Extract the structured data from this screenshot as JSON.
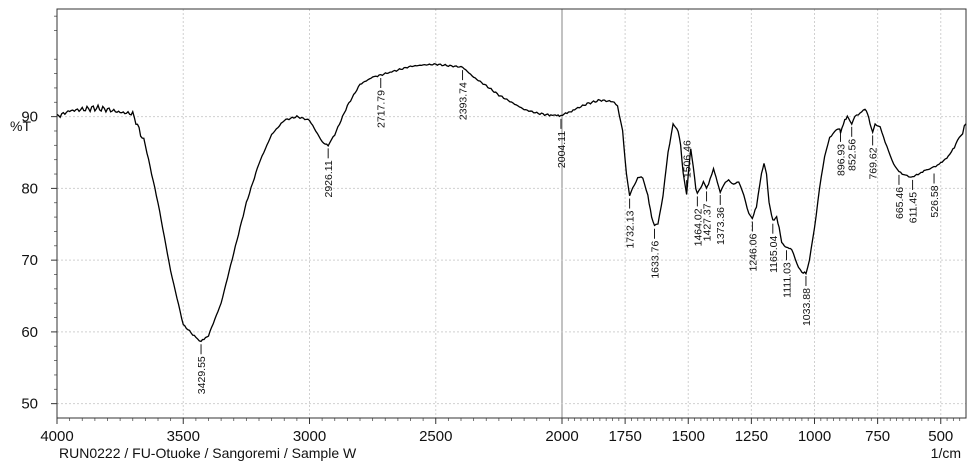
{
  "chart_data": {
    "type": "line",
    "ylabel": "%T",
    "xlabel": "1/cm",
    "caption": "RUN0222 / FU-Otuoke / Sangoremi /  Sample  W",
    "xlim": [
      4000,
      400
    ],
    "ylim": [
      48,
      105
    ],
    "grid": true,
    "x_ticks": [
      {
        "value": 4000,
        "label": "4000"
      },
      {
        "value": 3500,
        "label": "3500"
      },
      {
        "value": 3000,
        "label": "3000"
      },
      {
        "value": 2500,
        "label": "2500"
      },
      {
        "value": 2000,
        "label": "2000"
      },
      {
        "value": 1750,
        "label": "1750"
      },
      {
        "value": 1500,
        "label": "1500"
      },
      {
        "value": 1250,
        "label": "1250"
      },
      {
        "value": 1000,
        "label": "1000"
      },
      {
        "value": 750,
        "label": "750"
      },
      {
        "value": 500,
        "label": "500"
      }
    ],
    "y_ticks": [
      {
        "value": 50,
        "label": "50"
      },
      {
        "value": 60,
        "label": "60"
      },
      {
        "value": 70,
        "label": "70"
      },
      {
        "value": 80,
        "label": "80"
      },
      {
        "value": 90,
        "label": "90"
      }
    ],
    "series": [
      {
        "color": "#000000",
        "x": [
          4000,
          3950,
          3900,
          3850,
          3800,
          3750,
          3700,
          3650,
          3600,
          3550,
          3500,
          3450,
          3429.55,
          3400,
          3350,
          3300,
          3250,
          3200,
          3150,
          3100,
          3050,
          3000,
          2975,
          2950,
          2926.11,
          2900,
          2850,
          2800,
          2750,
          2717.79,
          2650,
          2600,
          2550,
          2500,
          2450,
          2393.74,
          2350,
          2300,
          2250,
          2200,
          2150,
          2100,
          2050,
          2004.11,
          1950,
          1900,
          1850,
          1800,
          1780,
          1760,
          1745,
          1732.13,
          1720,
          1700,
          1680,
          1660,
          1645,
          1633.76,
          1620,
          1600,
          1580,
          1560,
          1550,
          1540,
          1530,
          1520,
          1506.46,
          1500,
          1490,
          1480,
          1470,
          1464.02,
          1450,
          1440,
          1427.37,
          1420,
          1400,
          1390,
          1373.36,
          1360,
          1340,
          1320,
          1300,
          1280,
          1260,
          1246.06,
          1230,
          1210,
          1200,
          1190,
          1180,
          1165.04,
          1150,
          1140,
          1130,
          1120,
          1111.03,
          1090,
          1070,
          1050,
          1033.88,
          1020,
          1000,
          980,
          960,
          940,
          920,
          900,
          896.93,
          880,
          870,
          860,
          852.56,
          840,
          820,
          800,
          790,
          780,
          769.62,
          760,
          740,
          720,
          700,
          680,
          665.46,
          640,
          620,
          611.45,
          590,
          560,
          526.58,
          500,
          470,
          440,
          420,
          400
        ],
        "y": [
          90.0,
          90.8,
          91.0,
          91.2,
          91.0,
          90.6,
          90.4,
          86.0,
          78.0,
          68.5,
          61.0,
          59.2,
          58.7,
          59.5,
          64.0,
          71.0,
          78.0,
          83.5,
          87.5,
          89.5,
          90.0,
          89.5,
          88.0,
          86.5,
          86.0,
          87.5,
          91.5,
          94.5,
          95.5,
          95.8,
          96.5,
          97.0,
          97.2,
          97.3,
          97.1,
          96.9,
          95.5,
          94.3,
          93.0,
          92.0,
          91.0,
          90.5,
          90.2,
          90.1,
          91.0,
          91.8,
          92.3,
          92.1,
          91.5,
          88.0,
          82.0,
          79.0,
          80.0,
          81.5,
          81.5,
          79.0,
          76.0,
          74.8,
          75.0,
          79.0,
          85.0,
          89.0,
          88.5,
          88.0,
          86.0,
          82.0,
          79.2,
          82.0,
          85.5,
          83.0,
          80.0,
          79.3,
          80.0,
          81.0,
          80.0,
          80.5,
          82.8,
          81.5,
          79.5,
          80.5,
          81.2,
          80.5,
          81.0,
          79.0,
          76.5,
          75.8,
          77.5,
          82.0,
          83.5,
          82.0,
          78.0,
          75.5,
          76.0,
          74.5,
          72.5,
          72.0,
          71.8,
          71.5,
          69.5,
          68.3,
          68.2,
          70.0,
          74.5,
          80.0,
          84.5,
          87.0,
          88.0,
          88.3,
          87.8,
          89.5,
          90.0,
          89.5,
          89.0,
          90.0,
          90.5,
          91.0,
          90.5,
          89.0,
          87.8,
          89.0,
          88.5,
          86.5,
          84.5,
          83.0,
          82.3,
          81.8,
          81.6,
          81.6,
          82.0,
          82.5,
          83.0,
          83.5,
          84.5,
          86.0,
          87.5,
          89.0
        ]
      }
    ],
    "annotations": [
      {
        "x": 3429.55,
        "y": 58.7,
        "label": "3429.55",
        "dir": "down"
      },
      {
        "x": 2926.11,
        "y": 86.0,
        "label": "2926.11",
        "dir": "down"
      },
      {
        "x": 2717.79,
        "y": 95.8,
        "label": "2717.79",
        "dir": "down"
      },
      {
        "x": 2393.74,
        "y": 96.9,
        "label": "2393.74",
        "dir": "down"
      },
      {
        "x": 2004.11,
        "y": 90.1,
        "label": "2004.11",
        "dir": "down"
      },
      {
        "x": 1732.13,
        "y": 79.0,
        "label": "1732.13",
        "dir": "down"
      },
      {
        "x": 1633.76,
        "y": 74.8,
        "label": "1633.76",
        "dir": "down"
      },
      {
        "x": 1506.46,
        "y": 79.2,
        "label": "1506.46",
        "dir": "up"
      },
      {
        "x": 1464.02,
        "y": 79.3,
        "label": "1464.02",
        "dir": "down"
      },
      {
        "x": 1427.37,
        "y": 80.0,
        "label": "1427.37",
        "dir": "down"
      },
      {
        "x": 1373.36,
        "y": 79.5,
        "label": "1373.36",
        "dir": "down"
      },
      {
        "x": 1246.06,
        "y": 75.8,
        "label": "1246.06",
        "dir": "down"
      },
      {
        "x": 1165.04,
        "y": 75.5,
        "label": "1165.04",
        "dir": "down"
      },
      {
        "x": 1111.03,
        "y": 71.8,
        "label": "1111.03",
        "dir": "down"
      },
      {
        "x": 1033.88,
        "y": 68.2,
        "label": "1033.88",
        "dir": "down"
      },
      {
        "x": 896.93,
        "y": 88.3,
        "label": "896.93",
        "dir": "down"
      },
      {
        "x": 852.56,
        "y": 89.0,
        "label": "852.56",
        "dir": "down"
      },
      {
        "x": 769.62,
        "y": 87.8,
        "label": "769.62",
        "dir": "down"
      },
      {
        "x": 665.46,
        "y": 82.3,
        "label": "665.46",
        "dir": "down"
      },
      {
        "x": 611.45,
        "y": 81.6,
        "label": "611.45",
        "dir": "down"
      },
      {
        "x": 526.58,
        "y": 82.5,
        "label": "526.58",
        "dir": "down"
      }
    ]
  }
}
